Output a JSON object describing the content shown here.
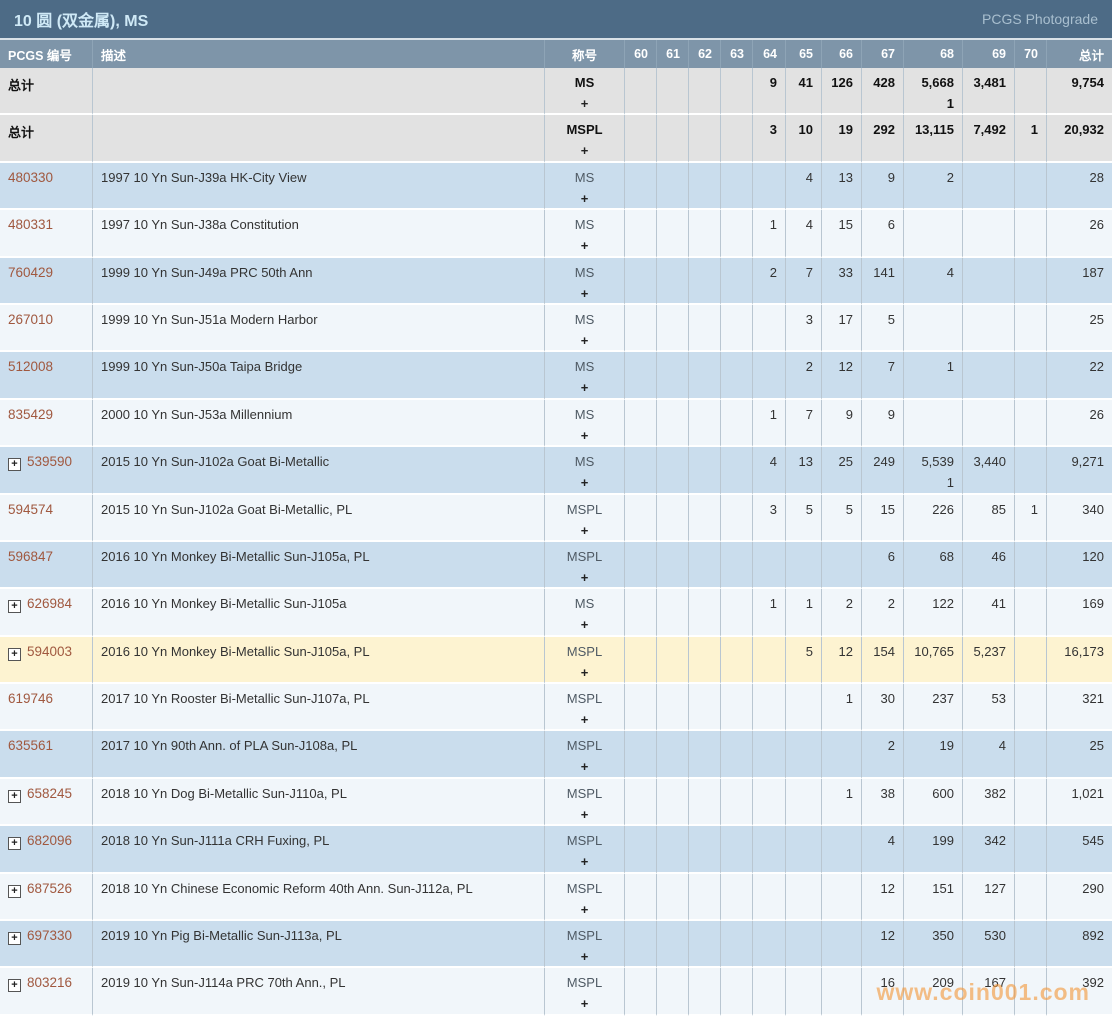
{
  "title_bar": {
    "title": "10 圆 (双金属), MS",
    "photograde_label": "PCGS Photograde"
  },
  "columns": {
    "pcgs": "PCGS 编号",
    "desc": "描述",
    "desig": "称号",
    "grades": [
      "60",
      "61",
      "62",
      "63",
      "64",
      "65",
      "66",
      "67",
      "68",
      "69",
      "70"
    ],
    "total": "总计"
  },
  "designation_plus": "+",
  "watermark": "www.coin001.com",
  "colors": {
    "title_bar_bg": "#4d6b86",
    "title_text": "#cfe9f6",
    "header_bg": "#7e95a9",
    "row_blue": "#cadded",
    "row_light": "#f1f6fa",
    "row_highlight": "#fdf3d1",
    "row_total": "#e2e2e2",
    "pcgs_number": "#a0583f",
    "watermark": "#f2973c"
  },
  "rows": [
    {
      "id": "总计",
      "total_row": true,
      "expandable": false,
      "desc": "",
      "desig": "MS",
      "values": {
        "64": "9",
        "65": "41",
        "66": "126",
        "67": "428",
        "68": "5,668",
        "69": "3,481",
        "total": "9,754"
      },
      "sub": {
        "68": "1"
      },
      "bg": "total"
    },
    {
      "id": "总计",
      "total_row": true,
      "expandable": false,
      "desc": "",
      "desig": "MSPL",
      "values": {
        "64": "3",
        "65": "10",
        "66": "19",
        "67": "292",
        "68": "13,115",
        "69": "7,492",
        "70": "1",
        "total": "20,932"
      },
      "sub": {},
      "bg": "total"
    },
    {
      "id": "480330",
      "expandable": false,
      "desc": "1997 10 Yn Sun-J39a HK-City View",
      "desig": "MS",
      "values": {
        "65": "4",
        "66": "13",
        "67": "9",
        "68": "2",
        "total": "28"
      },
      "sub": {},
      "bg": "blue"
    },
    {
      "id": "480331",
      "expandable": false,
      "desc": "1997 10 Yn Sun-J38a Constitution",
      "desig": "MS",
      "values": {
        "64": "1",
        "65": "4",
        "66": "15",
        "67": "6",
        "total": "26"
      },
      "sub": {},
      "bg": "light"
    },
    {
      "id": "760429",
      "expandable": false,
      "desc": "1999 10 Yn Sun-J49a PRC 50th Ann",
      "desig": "MS",
      "values": {
        "64": "2",
        "65": "7",
        "66": "33",
        "67": "141",
        "68": "4",
        "total": "187"
      },
      "sub": {},
      "bg": "blue"
    },
    {
      "id": "267010",
      "expandable": false,
      "desc": "1999 10 Yn Sun-J51a Modern Harbor",
      "desig": "MS",
      "values": {
        "65": "3",
        "66": "17",
        "67": "5",
        "total": "25"
      },
      "sub": {},
      "bg": "light"
    },
    {
      "id": "512008",
      "expandable": false,
      "desc": "1999 10 Yn Sun-J50a Taipa Bridge",
      "desig": "MS",
      "values": {
        "65": "2",
        "66": "12",
        "67": "7",
        "68": "1",
        "total": "22"
      },
      "sub": {},
      "bg": "blue"
    },
    {
      "id": "835429",
      "expandable": false,
      "desc": "2000 10 Yn Sun-J53a Millennium",
      "desig": "MS",
      "values": {
        "64": "1",
        "65": "7",
        "66": "9",
        "67": "9",
        "total": "26"
      },
      "sub": {},
      "bg": "light"
    },
    {
      "id": "539590",
      "expandable": true,
      "desc": "2015 10 Yn Sun-J102a Goat Bi-Metallic",
      "desig": "MS",
      "values": {
        "64": "4",
        "65": "13",
        "66": "25",
        "67": "249",
        "68": "5,539",
        "69": "3,440",
        "total": "9,271"
      },
      "sub": {
        "68": "1"
      },
      "bg": "blue"
    },
    {
      "id": "594574",
      "expandable": false,
      "desc": "2015 10 Yn Sun-J102a Goat Bi-Metallic, PL",
      "desig": "MSPL",
      "values": {
        "64": "3",
        "65": "5",
        "66": "5",
        "67": "15",
        "68": "226",
        "69": "85",
        "70": "1",
        "total": "340"
      },
      "sub": {},
      "bg": "light"
    },
    {
      "id": "596847",
      "expandable": false,
      "desc": "2016 10 Yn Monkey Bi-Metallic Sun-J105a, PL",
      "desig": "MSPL",
      "values": {
        "67": "6",
        "68": "68",
        "69": "46",
        "total": "120"
      },
      "sub": {},
      "bg": "blue"
    },
    {
      "id": "626984",
      "expandable": true,
      "desc": "2016 10 Yn Monkey Bi-Metallic Sun-J105a",
      "desig": "MS",
      "values": {
        "64": "1",
        "65": "1",
        "66": "2",
        "67": "2",
        "68": "122",
        "69": "41",
        "total": "169"
      },
      "sub": {},
      "bg": "light"
    },
    {
      "id": "594003",
      "expandable": true,
      "desc": "2016 10 Yn Monkey Bi-Metallic Sun-J105a, PL",
      "desig": "MSPL",
      "values": {
        "65": "5",
        "66": "12",
        "67": "154",
        "68": "10,765",
        "69": "5,237",
        "total": "16,173"
      },
      "sub": {},
      "bg": "highlight"
    },
    {
      "id": "619746",
      "expandable": false,
      "desc": "2017 10 Yn Rooster Bi-Metallic Sun-J107a, PL",
      "desig": "MSPL",
      "values": {
        "66": "1",
        "67": "30",
        "68": "237",
        "69": "53",
        "total": "321"
      },
      "sub": {},
      "bg": "light"
    },
    {
      "id": "635561",
      "expandable": false,
      "desc": "2017 10 Yn 90th Ann. of PLA Sun-J108a, PL",
      "desig": "MSPL",
      "values": {
        "67": "2",
        "68": "19",
        "69": "4",
        "total": "25"
      },
      "sub": {},
      "bg": "blue"
    },
    {
      "id": "658245",
      "expandable": true,
      "desc": "2018 10 Yn Dog Bi-Metallic Sun-J110a, PL",
      "desig": "MSPL",
      "values": {
        "66": "1",
        "67": "38",
        "68": "600",
        "69": "382",
        "total": "1,021"
      },
      "sub": {},
      "bg": "light"
    },
    {
      "id": "682096",
      "expandable": true,
      "desc": "2018 10 Yn Sun-J111a CRH Fuxing, PL",
      "desig": "MSPL",
      "values": {
        "67": "4",
        "68": "199",
        "69": "342",
        "total": "545"
      },
      "sub": {},
      "bg": "blue"
    },
    {
      "id": "687526",
      "expandable": true,
      "desc": "2018 10 Yn Chinese Economic Reform 40th Ann. Sun-J112a, PL",
      "desig": "MSPL",
      "values": {
        "67": "12",
        "68": "151",
        "69": "127",
        "total": "290"
      },
      "sub": {},
      "bg": "light"
    },
    {
      "id": "697330",
      "expandable": true,
      "desc": "2019 10 Yn Pig Bi-Metallic Sun-J113a, PL",
      "desig": "MSPL",
      "values": {
        "67": "12",
        "68": "350",
        "69": "530",
        "total": "892"
      },
      "sub": {},
      "bg": "blue"
    },
    {
      "id": "803216",
      "expandable": true,
      "desc": "2019 10 Yn Sun-J114a PRC 70th Ann., PL",
      "desig": "MSPL",
      "values": {
        "67": "16",
        "68": "209",
        "69": "167",
        "total": "392"
      },
      "sub": {},
      "bg": "light"
    }
  ]
}
